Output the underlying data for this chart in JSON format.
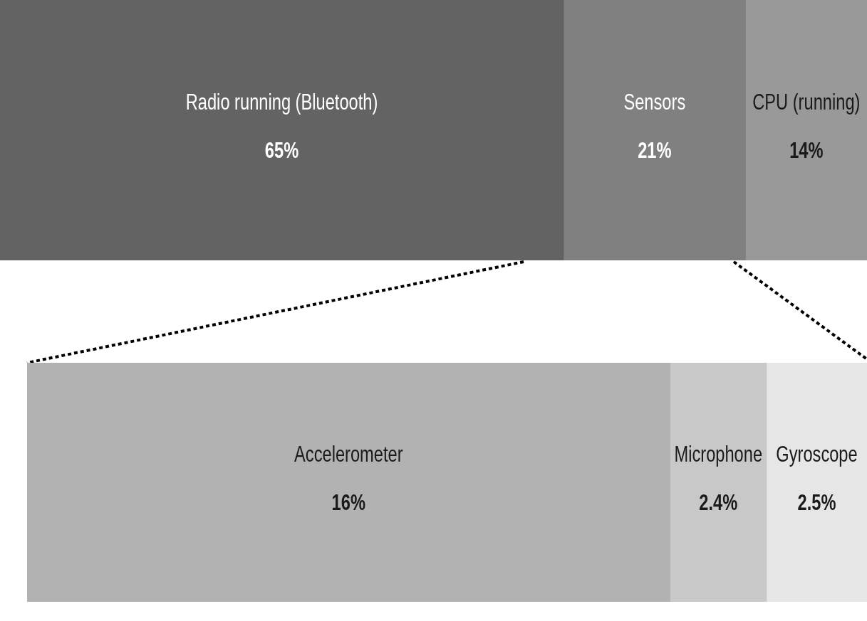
{
  "chart_data": [
    {
      "type": "bar",
      "orientation": "horizontal",
      "stacked": true,
      "categories": [
        null
      ],
      "tick_labels": false,
      "legend": false,
      "series": [
        {
          "name": "Radio running (Bluetooth)",
          "color": "#636363",
          "values": [
            65
          ],
          "value_labels": [
            "65%"
          ]
        },
        {
          "name": "Sensors",
          "color": "#808080",
          "values": [
            21
          ],
          "value_labels": [
            "21%"
          ]
        },
        {
          "name": "CPU (running)",
          "color": "#999999",
          "values": [
            14
          ],
          "value_labels": [
            "14%"
          ]
        }
      ]
    },
    {
      "type": "bar",
      "orientation": "horizontal",
      "stacked": true,
      "categories": [
        null
      ],
      "tick_labels": false,
      "legend": false,
      "series": [
        {
          "name": "Accelerometer",
          "color": "#b2b2b2",
          "values": [
            16
          ],
          "value_labels": [
            "16%"
          ]
        },
        {
          "name": "Microphone",
          "color": "#c8c8c8",
          "values": [
            2.4
          ],
          "value_labels": [
            "2.4%"
          ]
        },
        {
          "name": "Gyroscope",
          "color": "#e6e6e6",
          "values": [
            2.5
          ],
          "value_labels": [
            "2.5%"
          ]
        }
      ]
    }
  ]
}
